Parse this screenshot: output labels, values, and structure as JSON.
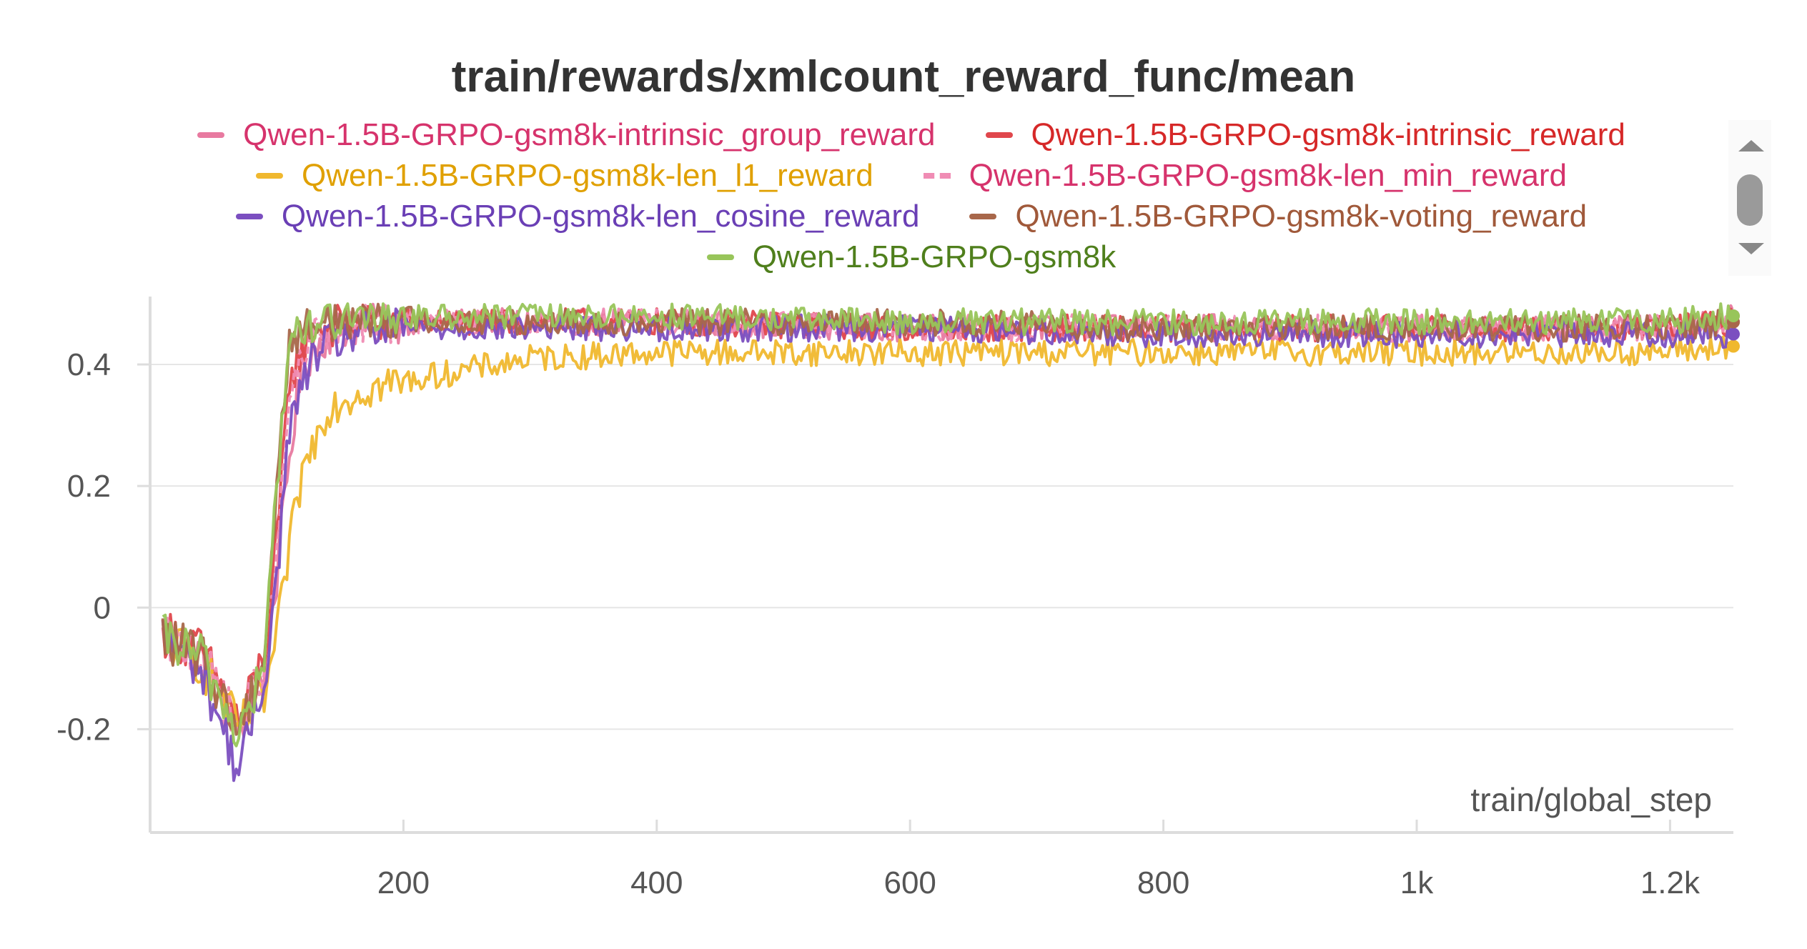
{
  "chart_data": {
    "type": "line",
    "title": "train/rewards/xmlcount_reward_func/mean",
    "xlabel": "train/global_step",
    "ylabel": "",
    "xlim": [
      0,
      1250
    ],
    "ylim": [
      -0.37,
      0.5
    ],
    "x_ticks": [
      200,
      400,
      600,
      800,
      1000,
      1200
    ],
    "x_tick_labels": [
      "200",
      "400",
      "600",
      "800",
      "1k",
      "1.2k"
    ],
    "y_ticks": [
      -0.2,
      0,
      0.2,
      0.4
    ],
    "y_tick_labels": [
      "-0.2",
      "0",
      "0.2",
      "0.4"
    ],
    "grid": true,
    "legend_position": "top-center",
    "series": [
      {
        "name": "Qwen-1.5B-GRPO-gsm8k-intrinsic_group_reward",
        "color": "#e87aa0",
        "label_color": "#d6336c",
        "dashed": false,
        "points": [
          [
            10,
            -0.05
          ],
          [
            40,
            -0.08
          ],
          [
            70,
            -0.2
          ],
          [
            90,
            -0.1
          ],
          [
            100,
            0.05
          ],
          [
            110,
            0.25
          ],
          [
            120,
            0.4
          ],
          [
            140,
            0.45
          ],
          [
            170,
            0.47
          ],
          [
            250,
            0.47
          ],
          [
            400,
            0.47
          ],
          [
            600,
            0.46
          ],
          [
            800,
            0.46
          ],
          [
            1000,
            0.46
          ],
          [
            1200,
            0.46
          ],
          [
            1250,
            0.48
          ]
        ]
      },
      {
        "name": "Qwen-1.5B-GRPO-gsm8k-intrinsic_reward",
        "color": "#e0474c",
        "label_color": "#d62828",
        "dashed": false,
        "points": [
          [
            10,
            -0.04
          ],
          [
            40,
            -0.07
          ],
          [
            70,
            -0.19
          ],
          [
            90,
            -0.08
          ],
          [
            100,
            0.1
          ],
          [
            110,
            0.38
          ],
          [
            130,
            0.46
          ],
          [
            170,
            0.47
          ],
          [
            250,
            0.47
          ],
          [
            400,
            0.47
          ],
          [
            600,
            0.46
          ],
          [
            800,
            0.46
          ],
          [
            1000,
            0.46
          ],
          [
            1200,
            0.46
          ],
          [
            1250,
            0.47
          ]
        ]
      },
      {
        "name": "Qwen-1.5B-GRPO-gsm8k-len_l1_reward",
        "color": "#f0b82e",
        "label_color": "#e0a000",
        "dashed": false,
        "points": [
          [
            10,
            -0.05
          ],
          [
            40,
            -0.09
          ],
          [
            70,
            -0.2
          ],
          [
            90,
            -0.15
          ],
          [
            100,
            -0.05
          ],
          [
            110,
            0.1
          ],
          [
            120,
            0.22
          ],
          [
            140,
            0.33
          ],
          [
            170,
            0.36
          ],
          [
            220,
            0.38
          ],
          [
            300,
            0.41
          ],
          [
            400,
            0.42
          ],
          [
            600,
            0.42
          ],
          [
            800,
            0.42
          ],
          [
            1000,
            0.42
          ],
          [
            1200,
            0.42
          ],
          [
            1250,
            0.43
          ]
        ]
      },
      {
        "name": "Qwen-1.5B-GRPO-gsm8k-len_min_reward",
        "color": "#f08cb4",
        "label_color": "#d6336c",
        "dashed": true,
        "points": [
          [
            10,
            -0.05
          ],
          [
            40,
            -0.08
          ],
          [
            70,
            -0.2
          ],
          [
            90,
            -0.09
          ],
          [
            100,
            0.08
          ],
          [
            110,
            0.35
          ],
          [
            130,
            0.45
          ],
          [
            170,
            0.47
          ],
          [
            250,
            0.47
          ],
          [
            400,
            0.47
          ],
          [
            600,
            0.46
          ],
          [
            800,
            0.46
          ],
          [
            1000,
            0.46
          ],
          [
            1200,
            0.46
          ],
          [
            1250,
            0.47
          ]
        ]
      },
      {
        "name": "Qwen-1.5B-GRPO-gsm8k-len_cosine_reward",
        "color": "#7b4fc0",
        "label_color": "#6a3fb5",
        "dashed": false,
        "points": [
          [
            10,
            -0.05
          ],
          [
            40,
            -0.1
          ],
          [
            70,
            -0.27
          ],
          [
            90,
            -0.12
          ],
          [
            100,
            0.05
          ],
          [
            110,
            0.3
          ],
          [
            130,
            0.42
          ],
          [
            160,
            0.45
          ],
          [
            200,
            0.46
          ],
          [
            300,
            0.46
          ],
          [
            400,
            0.46
          ],
          [
            600,
            0.46
          ],
          [
            800,
            0.45
          ],
          [
            1000,
            0.45
          ],
          [
            1200,
            0.45
          ],
          [
            1250,
            0.45
          ]
        ]
      },
      {
        "name": "Qwen-1.5B-GRPO-gsm8k-voting_reward",
        "color": "#a8674a",
        "label_color": "#a0593a",
        "dashed": false,
        "points": [
          [
            10,
            -0.05
          ],
          [
            40,
            -0.08
          ],
          [
            70,
            -0.2
          ],
          [
            90,
            -0.08
          ],
          [
            100,
            0.2
          ],
          [
            110,
            0.44
          ],
          [
            130,
            0.47
          ],
          [
            170,
            0.48
          ],
          [
            250,
            0.47
          ],
          [
            400,
            0.47
          ],
          [
            600,
            0.47
          ],
          [
            800,
            0.46
          ],
          [
            1000,
            0.46
          ],
          [
            1200,
            0.46
          ],
          [
            1250,
            0.47
          ]
        ]
      },
      {
        "name": "Qwen-1.5B-GRPO-gsm8k",
        "color": "#98c55a",
        "label_color": "#4f7f1c",
        "dashed": false,
        "points": [
          [
            10,
            -0.05
          ],
          [
            40,
            -0.08
          ],
          [
            70,
            -0.21
          ],
          [
            90,
            -0.1
          ],
          [
            100,
            0.2
          ],
          [
            110,
            0.44
          ],
          [
            130,
            0.47
          ],
          [
            170,
            0.48
          ],
          [
            250,
            0.48
          ],
          [
            400,
            0.48
          ],
          [
            600,
            0.47
          ],
          [
            800,
            0.47
          ],
          [
            1000,
            0.47
          ],
          [
            1200,
            0.47
          ],
          [
            1250,
            0.48
          ]
        ]
      }
    ]
  }
}
